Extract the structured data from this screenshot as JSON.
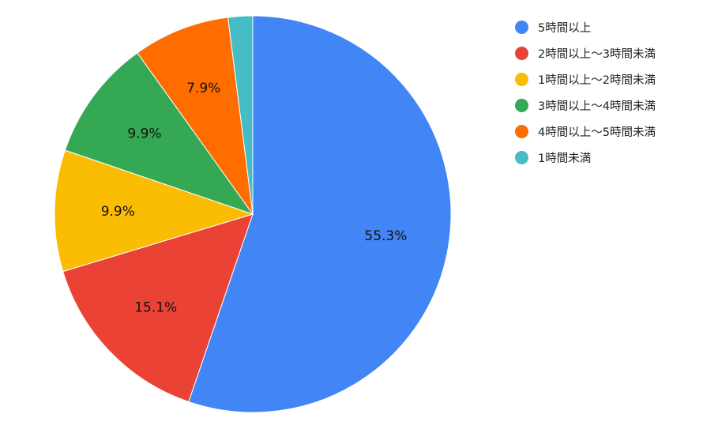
{
  "chart_data": {
    "type": "pie",
    "title": "",
    "slices": [
      {
        "label": "5時間以上",
        "value": 55.3,
        "display": "55.3%",
        "color": "#4285F4"
      },
      {
        "label": "2時間以上〜3時間未満",
        "value": 15.1,
        "display": "15.1%",
        "color": "#EA4335"
      },
      {
        "label": "1時間以上〜2時間未満",
        "value": 9.9,
        "display": "9.9%",
        "color": "#FBBC04"
      },
      {
        "label": "3時間以上〜4時間未満",
        "value": 9.9,
        "display": "9.9%",
        "color": "#34A853"
      },
      {
        "label": "4時間以上〜5時間未満",
        "value": 7.9,
        "display": "7.9%",
        "color": "#FF6D01"
      },
      {
        "label": "1時間未満",
        "value": 2.0,
        "display": "",
        "color": "#46BDC6"
      }
    ],
    "legend_position": "right"
  }
}
